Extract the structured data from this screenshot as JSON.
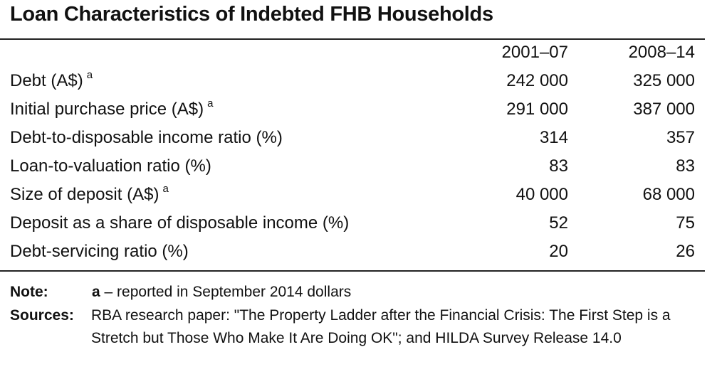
{
  "title": "Loan Characteristics of Indebted FHB Households",
  "columns": [
    "2001–07",
    "2008–14"
  ],
  "rows": [
    {
      "label": "Debt (A$)",
      "sup": "a",
      "v1": "242 000",
      "v2": "325 000"
    },
    {
      "label": "Initial purchase price (A$)",
      "sup": "a",
      "v1": "291 000",
      "v2": "387 000"
    },
    {
      "label": "Debt-to-disposable income ratio (%)",
      "sup": "",
      "v1": "314",
      "v2": "357"
    },
    {
      "label": "Loan-to-valuation ratio (%)",
      "sup": "",
      "v1": "83",
      "v2": "83"
    },
    {
      "label": "Size of deposit (A$)",
      "sup": "a",
      "v1": "40 000",
      "v2": "68 000"
    },
    {
      "label": "Deposit as a share of disposable income (%)",
      "sup": "",
      "v1": "52",
      "v2": "75"
    },
    {
      "label": "Debt-servicing ratio (%)",
      "sup": "",
      "v1": "20",
      "v2": "26"
    }
  ],
  "note": {
    "label": "Note:",
    "key": "a",
    "text": " – reported in September 2014 dollars"
  },
  "sources": {
    "label": "Sources:",
    "text": "RBA research paper: \"The Property Ladder after the Financial Crisis: The First Step is a Stretch but Those Who Make It Are Doing OK\"; and HILDA Survey Release 14.0"
  }
}
